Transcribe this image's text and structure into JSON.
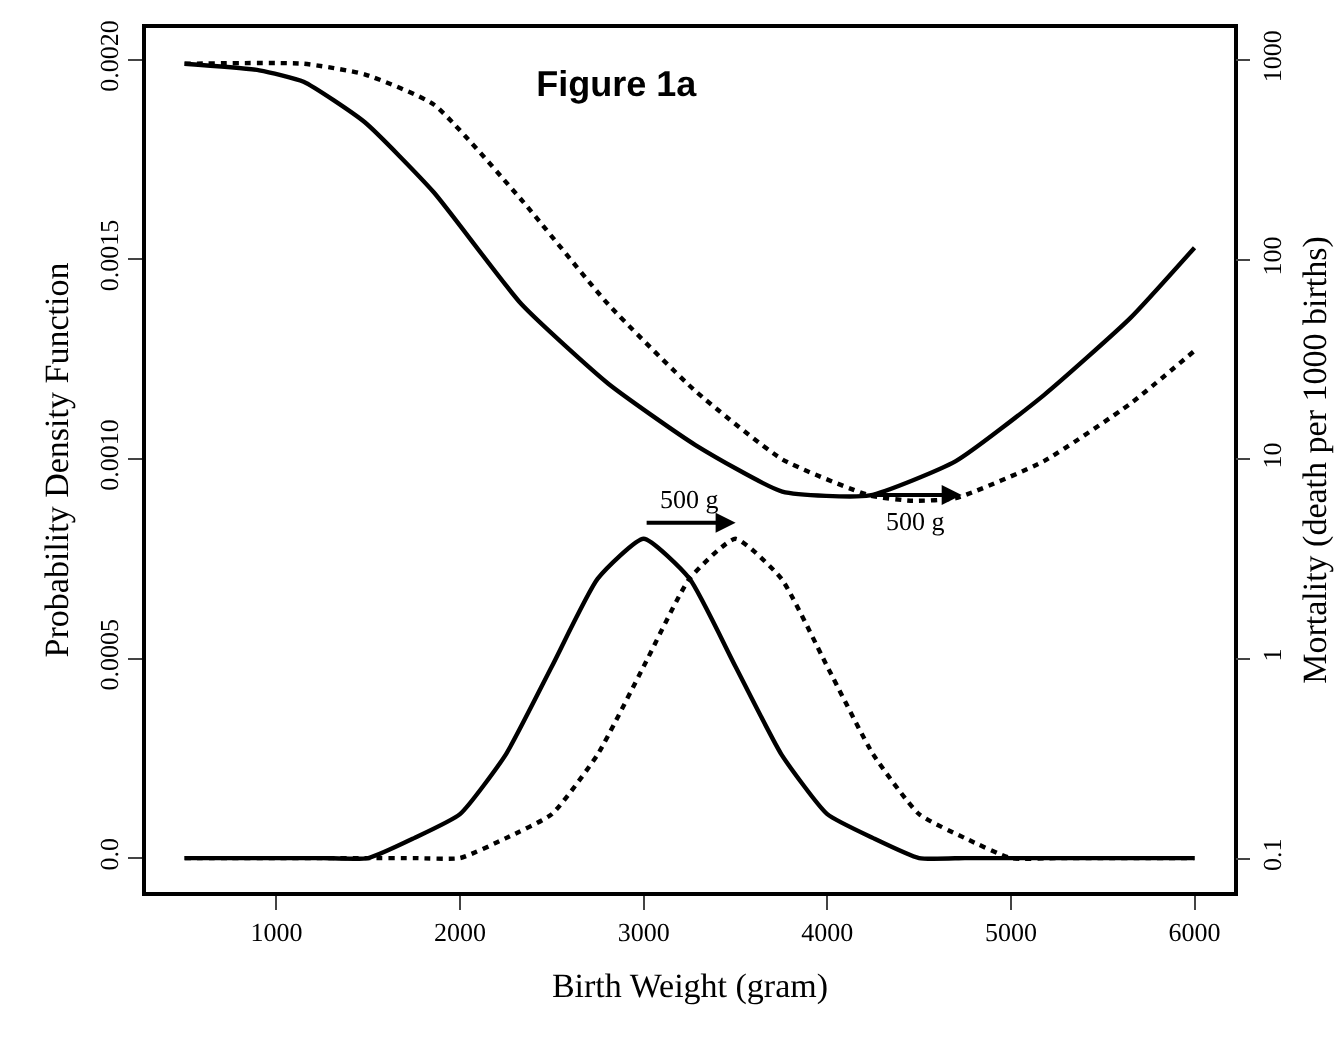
{
  "chart_data": {
    "type": "line",
    "title": "Figure 1a",
    "xlabel": "Birth Weight (gram)",
    "ylabel": "Probability Density Function",
    "y2label": "Mortality (death per 1000 births)",
    "x": [
      500,
      750,
      1000,
      1250,
      1500,
      1750,
      2000,
      2250,
      2500,
      2750,
      3000,
      3250,
      3500,
      3750,
      4000,
      4250,
      4500,
      4750,
      5000,
      5250,
      5500,
      5750,
      6000
    ],
    "series": [
      {
        "color": "#000000",
        "line_style": "solid",
        "values": [
          0,
          0,
          0,
          0,
          0,
          5e-05,
          0.00011,
          0.00026,
          0.00048,
          0.0007,
          0.0008,
          0.0007,
          0.00048,
          0.00026,
          0.00011,
          5e-05,
          0,
          0,
          0,
          0,
          0,
          0,
          0
        ]
      },
      {
        "color": "#000000",
        "line_style": "dotted",
        "values": [
          0,
          0,
          0,
          0,
          0,
          0,
          0,
          5e-05,
          0.00011,
          0.00026,
          0.00048,
          0.0007,
          0.0008,
          0.0007,
          0.00048,
          0.00026,
          0.00011,
          5e-05,
          0,
          0,
          0,
          0,
          0
        ]
      },
      {
        "color": "#000000",
        "line_style": "solid",
        "axis": "y2",
        "x": [
          500,
          907,
          1148,
          1480,
          1857,
          2334,
          2806,
          3282,
          3755,
          4231,
          4700,
          5180,
          5650,
          6000
        ],
        "values": [
          960,
          890,
          780,
          490,
          218,
          60,
          24,
          11.8,
          6.9,
          6.6,
          9.8,
          21,
          51,
          115
        ]
      },
      {
        "color": "#000000",
        "line_style": "dotted",
        "axis": "y2",
        "x": [
          500,
          1148,
          1480,
          1857,
          2334,
          2806,
          3282,
          3755,
          4231,
          4466,
          4700,
          5180,
          5650,
          6000
        ],
        "values": [
          960,
          960,
          850,
          600,
          200,
          60,
          22,
          10,
          6.6,
          6.2,
          6.4,
          9.8,
          19,
          35
        ]
      }
    ],
    "annotations": [
      {
        "text": "500 g",
        "x": 3000,
        "y": 0.0008
      },
      {
        "text": "500 g",
        "x": 4231,
        "y": 0.00091
      }
    ],
    "xlim": [
      290,
      6215
    ],
    "xticks": [
      1000,
      2000,
      3000,
      4000,
      5000,
      6000
    ],
    "ylim": [
      -8.5e-05,
      0.00208
    ],
    "yticks": [
      {
        "value": 0,
        "label": "0.0"
      },
      0.0005,
      {
        "value": 0.001,
        "label": "0.0010"
      },
      0.0015,
      {
        "value": 0.002,
        "label": "0.0020"
      }
    ],
    "y2lim": [
      0.068,
      1450
    ],
    "y2ticks": [
      0.1,
      1,
      10,
      100,
      1000
    ],
    "log": "y2",
    "grid": false,
    "legend": false
  }
}
